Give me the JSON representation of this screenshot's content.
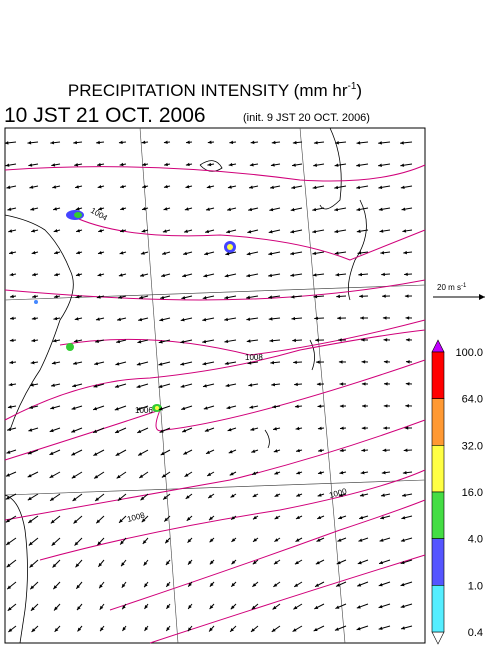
{
  "title": {
    "text": "PRECIPITATION INTENSITY (mm hr",
    "superscript": "-1",
    "close": ")"
  },
  "valid_time": "10 JST 21 OCT. 2006",
  "init_time": "(init. 9 JST 20 OCT. 2006)",
  "wind_reference": {
    "text": "20 m s",
    "superscript": "-1"
  },
  "isobar_labels": [
    "1004",
    "1008",
    "1006",
    "1000",
    "1008"
  ],
  "colorbar": {
    "labels": [
      "100.0",
      "64.0",
      "32.0",
      "16.0",
      "4.0",
      "1.0",
      "0.4"
    ]
  }
}
